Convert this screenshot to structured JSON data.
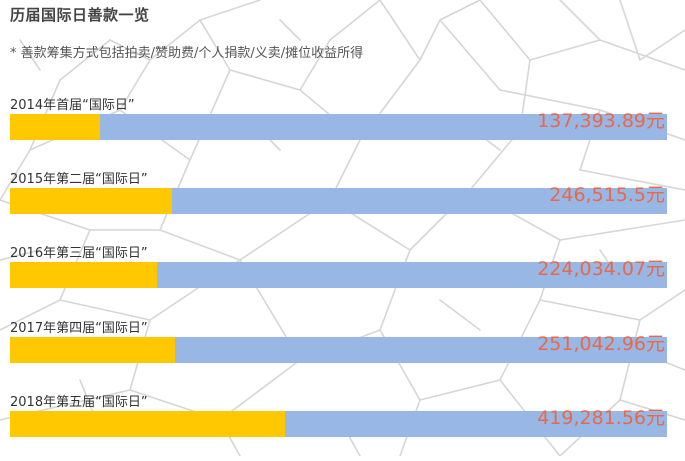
{
  "title": "历届国际日善款一览",
  "note": "* 善款筹集方式包括拍卖/赞助费/个人捐款/义卖/摊位收益所得",
  "colors": {
    "track": "#98b7e4",
    "fill": "#ffc800",
    "amount": "#e8694a",
    "map_line": "#d6d6d6"
  },
  "chart_data": {
    "type": "bar",
    "orientation": "horizontal",
    "value_suffix": "元",
    "categories": [
      "2014年首届“国际日”",
      "2015年第二届“国际日”",
      "2016年第三届“国际日”",
      "2017年第四届“国际日”",
      "2018年第五届“国际日”"
    ],
    "values": [
      137393.89,
      246515.5,
      224034.07,
      251042.96,
      419281.56
    ],
    "value_labels": [
      "137,393.89元",
      "246,515.5元",
      "224,034.07元",
      "251,042.96元",
      "419,281.56元"
    ],
    "xlim": [
      0,
      1000000
    ],
    "grid": false,
    "legend": "none"
  }
}
